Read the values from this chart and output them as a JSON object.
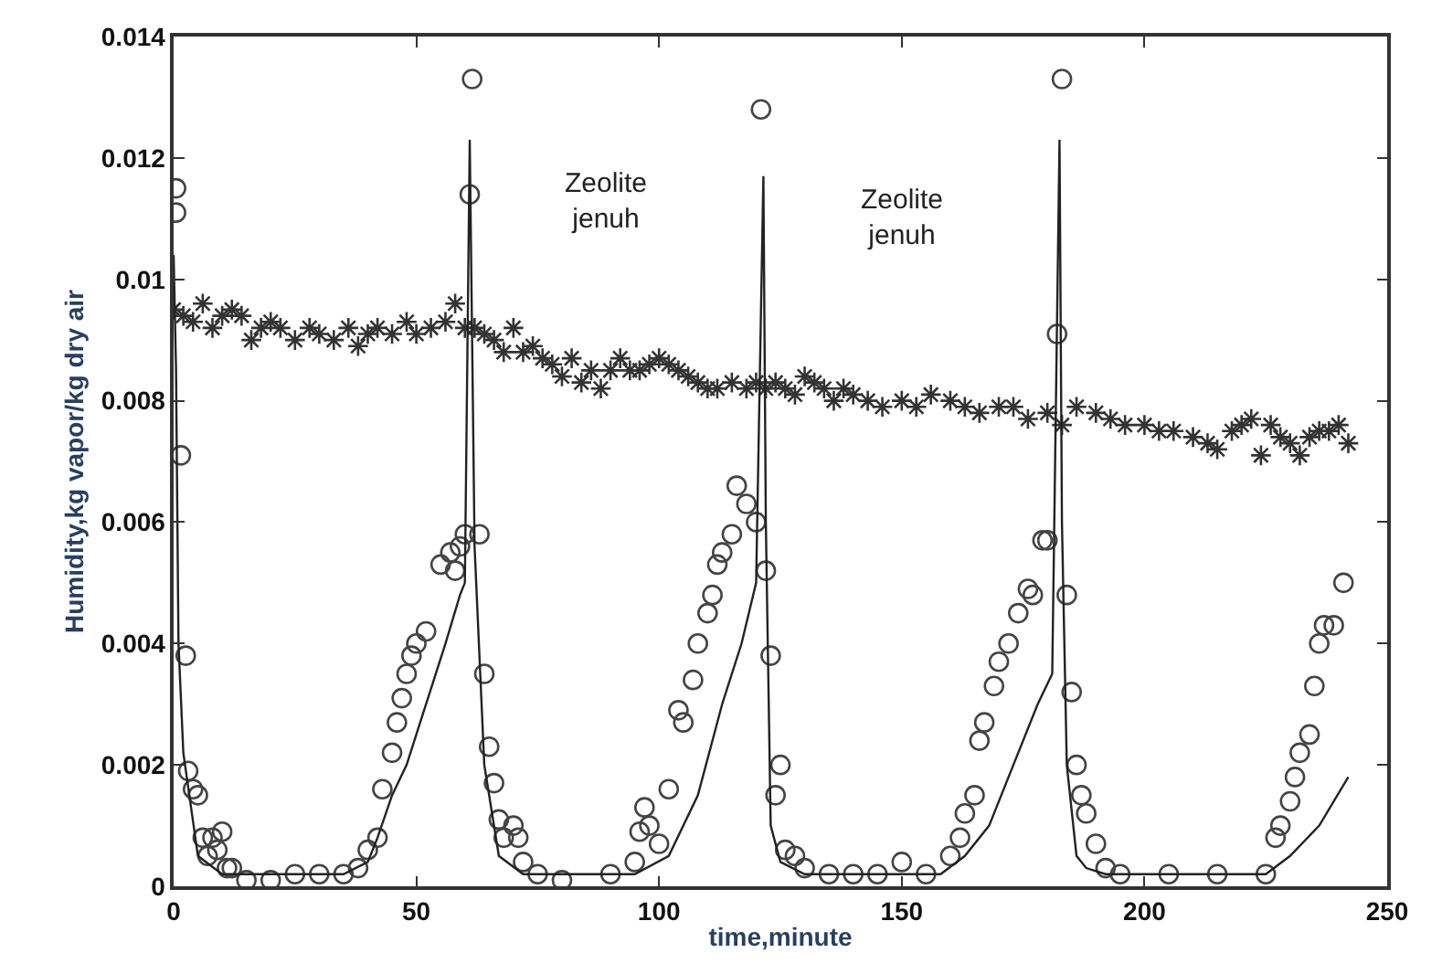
{
  "chart_data": {
    "type": "scatter",
    "xlabel": "time,minute",
    "ylabel": "Humidity,kg vapor/kg dry air",
    "xlim": [
      0,
      250
    ],
    "xticks": [
      0,
      50,
      100,
      150,
      200,
      250
    ],
    "ylim": [
      0,
      0.014
    ],
    "yticks": [
      0,
      0.002,
      0.004,
      0.006,
      0.008,
      0.01,
      0.012,
      0.014
    ],
    "annotations": [
      "Zeolite\njenuh",
      "Zeolite\njenuh"
    ],
    "series": [
      {
        "marker": "cross",
        "color": "#333333",
        "x": [
          0,
          2,
          4,
          6,
          8,
          10,
          12,
          14,
          16,
          18,
          20,
          22,
          25,
          28,
          30,
          33,
          36,
          38,
          40,
          42,
          45,
          48,
          50,
          53,
          56,
          58,
          60,
          62,
          64,
          66,
          68,
          70,
          72,
          74,
          76,
          78,
          80,
          82,
          84,
          86,
          88,
          90,
          92,
          94,
          96,
          98,
          100,
          102,
          104,
          106,
          108,
          110,
          112,
          115,
          118,
          120,
          122,
          124,
          126,
          128,
          130,
          132,
          134,
          136,
          138,
          140,
          143,
          146,
          150,
          153,
          156,
          160,
          163,
          166,
          170,
          173,
          176,
          180,
          183,
          186,
          190,
          193,
          196,
          200,
          203,
          206,
          210,
          213,
          215,
          218,
          220,
          222,
          224,
          226,
          228,
          230,
          232,
          234,
          236,
          238,
          240,
          242
        ],
        "values": [
          0.0095,
          0.0094,
          0.0093,
          0.0096,
          0.0092,
          0.0094,
          0.0095,
          0.0094,
          0.009,
          0.0092,
          0.0093,
          0.0092,
          0.009,
          0.0092,
          0.0091,
          0.009,
          0.0092,
          0.0089,
          0.0091,
          0.0092,
          0.0091,
          0.0093,
          0.0091,
          0.0092,
          0.0093,
          0.0096,
          0.0092,
          0.0092,
          0.0091,
          0.009,
          0.0088,
          0.0092,
          0.0088,
          0.0089,
          0.0087,
          0.0086,
          0.0084,
          0.0087,
          0.0083,
          0.0085,
          0.0082,
          0.0085,
          0.0087,
          0.0085,
          0.0085,
          0.0086,
          0.0087,
          0.0086,
          0.0085,
          0.0084,
          0.0083,
          0.0082,
          0.0082,
          0.0083,
          0.0082,
          0.0083,
          0.0082,
          0.0083,
          0.0082,
          0.0081,
          0.0084,
          0.0083,
          0.0082,
          0.008,
          0.0082,
          0.0081,
          0.008,
          0.0079,
          0.008,
          0.0079,
          0.0081,
          0.008,
          0.0079,
          0.0078,
          0.0079,
          0.0079,
          0.0077,
          0.0078,
          0.0076,
          0.0079,
          0.0078,
          0.0077,
          0.0076,
          0.0076,
          0.0075,
          0.0075,
          0.0074,
          0.0073,
          0.0072,
          0.0075,
          0.0076,
          0.0077,
          0.0071,
          0.0076,
          0.0074,
          0.0073,
          0.0071,
          0.0074,
          0.0075,
          0.0075,
          0.0076,
          0.0073
        ]
      },
      {
        "marker": "circle",
        "color": "#444444",
        "x": [
          0.5,
          0.5,
          1.5,
          2.5,
          3,
          4,
          5,
          6,
          7,
          8,
          9,
          10,
          11,
          12,
          15,
          20,
          25,
          30,
          35,
          38,
          40,
          42,
          43,
          45,
          46,
          47,
          48,
          49,
          50,
          52,
          55,
          57,
          58,
          59,
          60,
          61,
          61.5,
          63,
          64,
          65,
          66,
          67,
          68,
          70,
          71,
          72,
          75,
          80,
          90,
          95,
          96,
          97,
          98,
          100,
          102,
          104,
          105,
          107,
          108,
          110,
          111,
          112,
          113,
          115,
          116,
          118,
          120,
          121,
          122,
          123,
          124,
          125,
          126,
          128,
          130,
          135,
          140,
          145,
          150,
          155,
          160,
          162,
          163,
          165,
          166,
          167,
          169,
          170,
          172,
          174,
          176,
          177,
          179,
          180,
          182,
          183,
          184,
          185,
          186,
          187,
          188,
          190,
          192,
          195,
          205,
          215,
          225,
          227,
          228,
          230,
          231,
          232,
          234,
          235,
          236,
          237,
          239,
          241
        ],
        "values": [
          0.0115,
          0.0111,
          0.0071,
          0.0038,
          0.0019,
          0.0016,
          0.0015,
          0.0008,
          0.0005,
          0.0008,
          0.0006,
          0.0009,
          0.0003,
          0.0003,
          0.0001,
          0.0001,
          0.0002,
          0.0002,
          0.0002,
          0.0003,
          0.0006,
          0.0008,
          0.0016,
          0.0022,
          0.0027,
          0.0031,
          0.0035,
          0.0038,
          0.004,
          0.0042,
          0.0053,
          0.0055,
          0.0052,
          0.0056,
          0.0058,
          0.0114,
          0.0133,
          0.0058,
          0.0035,
          0.0023,
          0.0017,
          0.0011,
          0.0008,
          0.001,
          0.0008,
          0.0004,
          0.0002,
          0.0001,
          0.0002,
          0.0004,
          0.0009,
          0.0013,
          0.001,
          0.0007,
          0.0016,
          0.0029,
          0.0027,
          0.0034,
          0.004,
          0.0045,
          0.0048,
          0.0053,
          0.0055,
          0.0058,
          0.0066,
          0.0063,
          0.006,
          0.0128,
          0.0052,
          0.0038,
          0.0015,
          0.002,
          0.0006,
          0.0005,
          0.0003,
          0.0002,
          0.0002,
          0.0002,
          0.0004,
          0.0002,
          0.0005,
          0.0008,
          0.0012,
          0.0015,
          0.0024,
          0.0027,
          0.0033,
          0.0037,
          0.004,
          0.0045,
          0.0049,
          0.0048,
          0.0057,
          0.0057,
          0.0091,
          0.0133,
          0.0048,
          0.0032,
          0.002,
          0.0015,
          0.0012,
          0.0007,
          0.0003,
          0.0002,
          0.0002,
          0.0002,
          0.0002,
          0.0008,
          0.001,
          0.0014,
          0.0018,
          0.0022,
          0.0025,
          0.0033,
          0.004,
          0.0043,
          0.0043,
          0.005
        ]
      },
      {
        "type": "line",
        "marker": "none",
        "line_style": "solid",
        "color": "#222222",
        "x": [
          0,
          0.5,
          1,
          2,
          5,
          10,
          20,
          35,
          40,
          42,
          45,
          48,
          52,
          56,
          59,
          60,
          61,
          62,
          64,
          67,
          72,
          85,
          95,
          102,
          108,
          113,
          117,
          120,
          121.5,
          122,
          123,
          125,
          130,
          145,
          158,
          163,
          168,
          173,
          178,
          181,
          182.5,
          183,
          184,
          186,
          188,
          192,
          210,
          225,
          230,
          236,
          242
        ],
        "values": [
          0.0104,
          0.0085,
          0.004,
          0.0022,
          0.0005,
          0.0002,
          0.0002,
          0.0002,
          0.0004,
          0.0008,
          0.0015,
          0.002,
          0.003,
          0.004,
          0.0048,
          0.005,
          0.0123,
          0.0056,
          0.002,
          0.0005,
          0.0002,
          0.0002,
          0.0002,
          0.0005,
          0.0015,
          0.003,
          0.004,
          0.005,
          0.0117,
          0.006,
          0.001,
          0.0004,
          0.0002,
          0.0002,
          0.0002,
          0.0005,
          0.001,
          0.002,
          0.003,
          0.0035,
          0.0123,
          0.006,
          0.002,
          0.0005,
          0.0003,
          0.0002,
          0.0002,
          0.0002,
          0.0005,
          0.001,
          0.0018
        ]
      }
    ]
  }
}
